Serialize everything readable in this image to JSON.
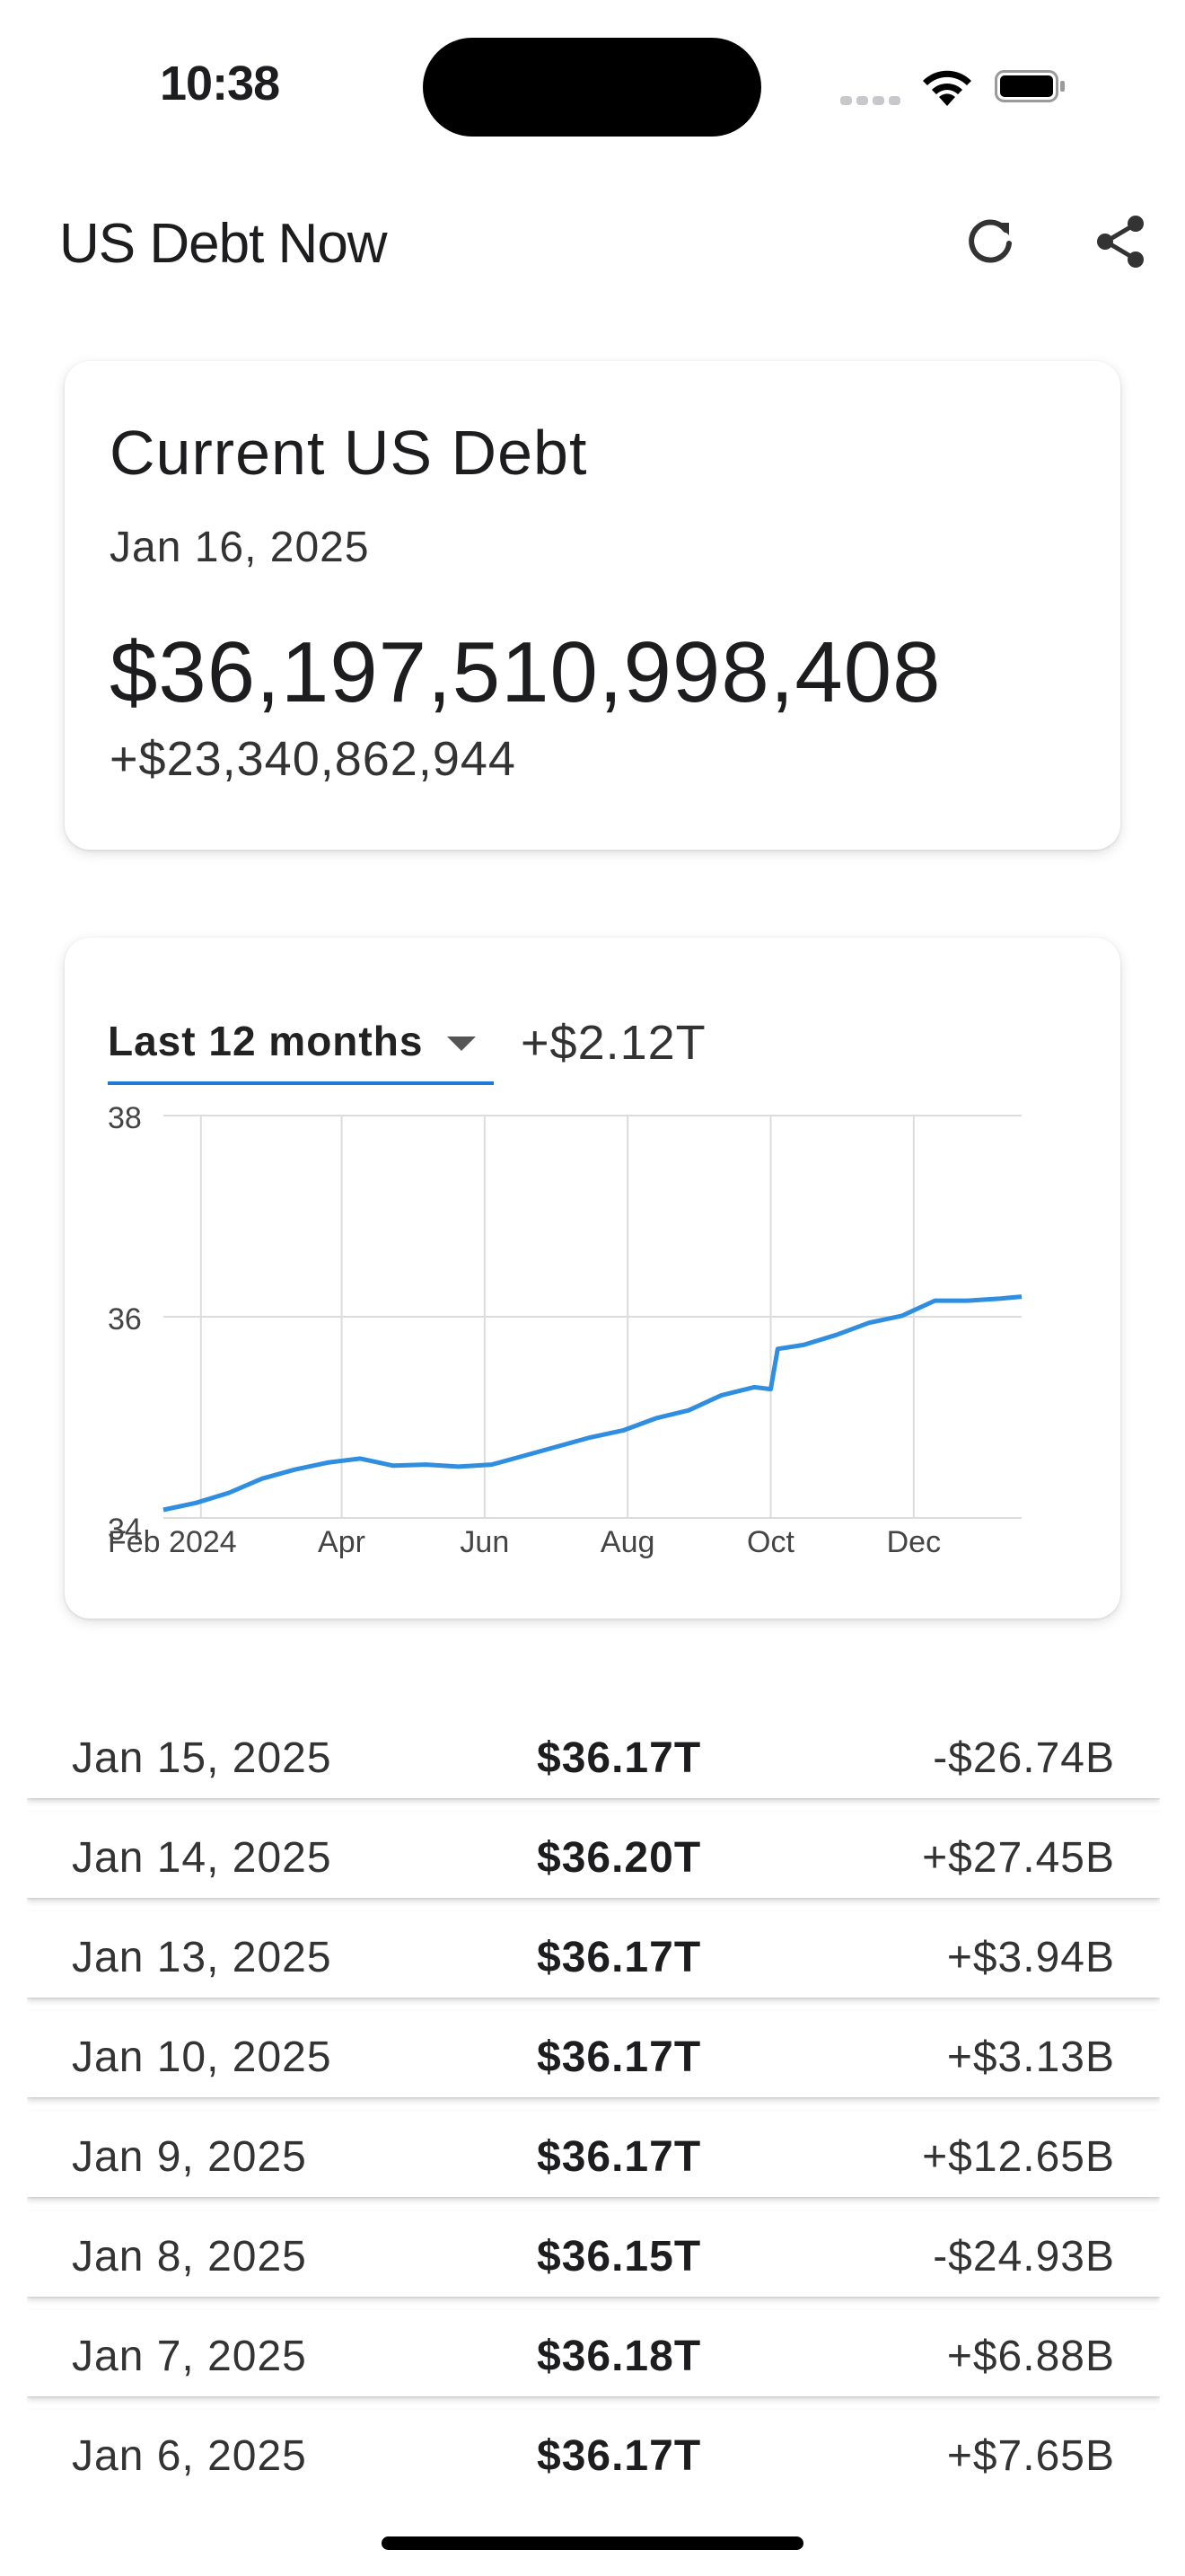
{
  "status_bar": {
    "time": "10:38"
  },
  "app_bar": {
    "title": "US Debt Now",
    "refresh_icon": "refresh-icon",
    "share_icon": "share-icon"
  },
  "debt_card": {
    "heading": "Current US Debt",
    "date": "Jan 16, 2025",
    "amount": "$36,197,510,998,408",
    "change": "+$23,340,862,944"
  },
  "chart_card": {
    "range_selected": "Last 12 months",
    "range_delta": "+$2.12T"
  },
  "colors": {
    "accent": "#1e7ad6",
    "line": "#2f8ee0",
    "grid": "#dcdcdc"
  },
  "chart_data": {
    "type": "line",
    "title": "",
    "xlabel": "",
    "ylabel": "",
    "ylim": [
      34,
      38
    ],
    "y_ticks": [
      "34",
      "36",
      "38"
    ],
    "x_ticks": [
      "Feb 2024",
      "Apr",
      "Jun",
      "Aug",
      "Oct",
      "Dec"
    ],
    "grid": true,
    "series": [
      {
        "values": [
          {
            "x": "2024-01-16",
            "y": 34.08
          },
          {
            "x": "2024-01-30",
            "y": 34.15
          },
          {
            "x": "2024-02-13",
            "y": 34.25
          },
          {
            "x": "2024-02-27",
            "y": 34.39
          },
          {
            "x": "2024-03-12",
            "y": 34.48
          },
          {
            "x": "2024-03-26",
            "y": 34.55
          },
          {
            "x": "2024-04-09",
            "y": 34.59
          },
          {
            "x": "2024-04-23",
            "y": 34.52
          },
          {
            "x": "2024-05-07",
            "y": 34.53
          },
          {
            "x": "2024-05-21",
            "y": 34.51
          },
          {
            "x": "2024-06-04",
            "y": 34.53
          },
          {
            "x": "2024-06-18",
            "y": 34.62
          },
          {
            "x": "2024-07-02",
            "y": 34.71
          },
          {
            "x": "2024-07-16",
            "y": 34.8
          },
          {
            "x": "2024-07-30",
            "y": 34.87
          },
          {
            "x": "2024-08-13",
            "y": 34.99
          },
          {
            "x": "2024-08-27",
            "y": 35.07
          },
          {
            "x": "2024-09-10",
            "y": 35.22
          },
          {
            "x": "2024-09-24",
            "y": 35.3
          },
          {
            "x": "2024-10-01",
            "y": 35.28
          },
          {
            "x": "2024-10-04",
            "y": 35.68
          },
          {
            "x": "2024-10-15",
            "y": 35.72
          },
          {
            "x": "2024-10-29",
            "y": 35.82
          },
          {
            "x": "2024-11-12",
            "y": 35.94
          },
          {
            "x": "2024-11-26",
            "y": 36.01
          },
          {
            "x": "2024-12-10",
            "y": 36.16
          },
          {
            "x": "2024-12-24",
            "y": 36.16
          },
          {
            "x": "2025-01-07",
            "y": 36.18
          },
          {
            "x": "2025-01-16",
            "y": 36.2
          }
        ]
      }
    ]
  },
  "history": {
    "rows": [
      {
        "date": "Jan 15, 2025",
        "value": "$36.17T",
        "change": "-$26.74B"
      },
      {
        "date": "Jan 14, 2025",
        "value": "$36.20T",
        "change": "+$27.45B"
      },
      {
        "date": "Jan 13, 2025",
        "value": "$36.17T",
        "change": "+$3.94B"
      },
      {
        "date": "Jan 10, 2025",
        "value": "$36.17T",
        "change": "+$3.13B"
      },
      {
        "date": "Jan 9, 2025",
        "value": "$36.17T",
        "change": "+$12.65B"
      },
      {
        "date": "Jan 8, 2025",
        "value": "$36.15T",
        "change": "-$24.93B"
      },
      {
        "date": "Jan 7, 2025",
        "value": "$36.18T",
        "change": "+$6.88B"
      },
      {
        "date": "Jan 6, 2025",
        "value": "$36.17T",
        "change": "+$7.65B"
      }
    ]
  }
}
